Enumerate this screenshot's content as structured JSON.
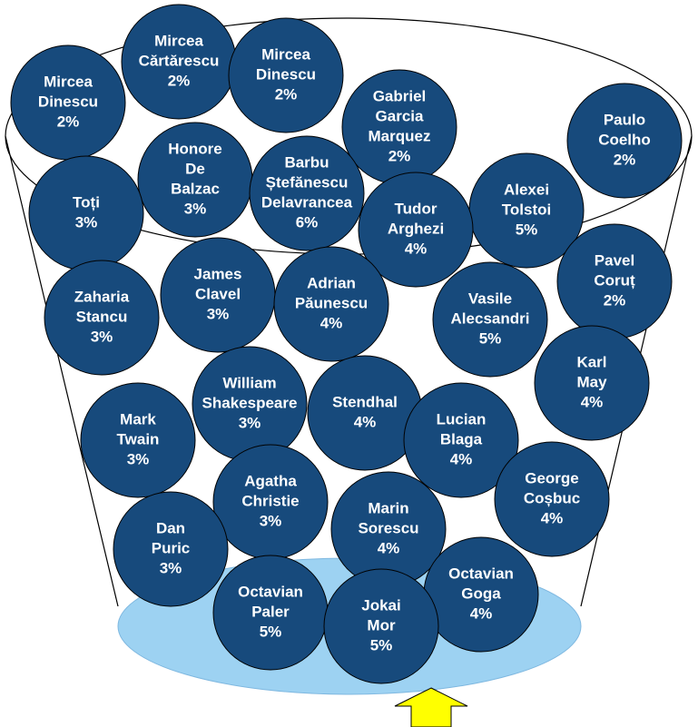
{
  "nodes": [
    {
      "label": [
        "Mircea",
        "Dinescu"
      ],
      "share": "2%"
    },
    {
      "label": [
        "Mircea",
        "Cărtărescu"
      ],
      "share": "2%"
    },
    {
      "label": [
        "Mircea",
        "Dinescu"
      ],
      "share": "2%"
    },
    {
      "label": [
        "Gabriel",
        "Garcia",
        "Marquez"
      ],
      "share": "2%"
    },
    {
      "label": [
        "Paulo",
        "Coelho"
      ],
      "share": "2%"
    },
    {
      "label": [
        "Honore",
        "De",
        "Balzac"
      ],
      "share": "3%"
    },
    {
      "label": [
        "Barbu",
        "Ștefănescu",
        "Delavrancea"
      ],
      "share": "6%"
    },
    {
      "label": [
        "Toți"
      ],
      "share": "3%"
    },
    {
      "label": [
        "Alexei",
        "Tolstoi"
      ],
      "share": "5%"
    },
    {
      "label": [
        "Tudor",
        "Arghezi"
      ],
      "share": "4%"
    },
    {
      "label": [
        "Pavel",
        "Coruț"
      ],
      "share": "2%"
    },
    {
      "label": [
        "James",
        "Clavel"
      ],
      "share": "3%"
    },
    {
      "label": [
        "Adrian",
        "Păunescu"
      ],
      "share": "4%"
    },
    {
      "label": [
        "Zaharia",
        "Stancu"
      ],
      "share": "3%"
    },
    {
      "label": [
        "Vasile",
        "Alecsandri"
      ],
      "share": "5%"
    },
    {
      "label": [
        "Karl",
        "May"
      ],
      "share": "4%"
    },
    {
      "label": [
        "William",
        "Shakespeare"
      ],
      "share": "3%"
    },
    {
      "label": [
        "Stendhal"
      ],
      "share": "4%"
    },
    {
      "label": [
        "Mark",
        "Twain"
      ],
      "share": "3%"
    },
    {
      "label": [
        "Lucian",
        "Blaga"
      ],
      "share": "4%"
    },
    {
      "label": [
        "George",
        "Coșbuc"
      ],
      "share": "4%"
    },
    {
      "label": [
        "Agatha",
        "Christie"
      ],
      "share": "3%"
    },
    {
      "label": [
        "Marin",
        "Sorescu"
      ],
      "share": "4%"
    },
    {
      "label": [
        "Dan",
        "Puric"
      ],
      "share": "3%"
    },
    {
      "label": [
        "Octavian",
        "Goga"
      ],
      "share": "4%"
    },
    {
      "label": [
        "Octavian",
        "Paler"
      ],
      "share": "5%"
    },
    {
      "label": [
        "Jokai",
        "Mor"
      ],
      "share": "5%"
    }
  ]
}
